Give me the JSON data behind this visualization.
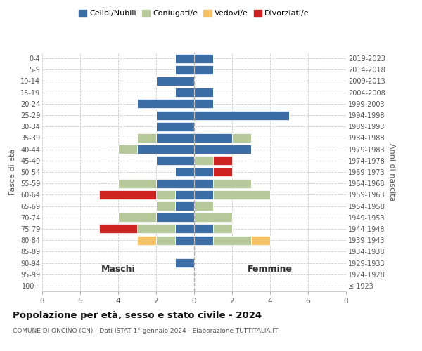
{
  "age_groups": [
    "100+",
    "95-99",
    "90-94",
    "85-89",
    "80-84",
    "75-79",
    "70-74",
    "65-69",
    "60-64",
    "55-59",
    "50-54",
    "45-49",
    "40-44",
    "35-39",
    "30-34",
    "25-29",
    "20-24",
    "15-19",
    "10-14",
    "5-9",
    "0-4"
  ],
  "birth_years": [
    "≤ 1923",
    "1924-1928",
    "1929-1933",
    "1934-1938",
    "1939-1943",
    "1944-1948",
    "1949-1953",
    "1954-1958",
    "1959-1963",
    "1964-1968",
    "1969-1973",
    "1974-1978",
    "1979-1983",
    "1984-1988",
    "1989-1993",
    "1994-1998",
    "1999-2003",
    "2004-2008",
    "2009-2013",
    "2014-2018",
    "2019-2023"
  ],
  "colors": {
    "celibi": "#3c6ea5",
    "coniugati": "#b5c99a",
    "vedovi": "#f5c165",
    "divorziati": "#cc2222"
  },
  "males": {
    "celibi": [
      0,
      0,
      1,
      0,
      1,
      1,
      2,
      1,
      1,
      2,
      1,
      2,
      3,
      2,
      2,
      2,
      3,
      1,
      2,
      1,
      1
    ],
    "coniugati": [
      0,
      0,
      0,
      0,
      1,
      2,
      2,
      1,
      1,
      2,
      0,
      0,
      1,
      1,
      0,
      0,
      0,
      0,
      0,
      0,
      0
    ],
    "vedovi": [
      0,
      0,
      0,
      0,
      1,
      0,
      0,
      0,
      0,
      0,
      0,
      0,
      0,
      0,
      0,
      0,
      0,
      0,
      0,
      0,
      0
    ],
    "divorziati": [
      0,
      0,
      0,
      0,
      0,
      2,
      0,
      0,
      3,
      0,
      0,
      0,
      0,
      0,
      0,
      0,
      0,
      0,
      0,
      0,
      0
    ]
  },
  "females": {
    "celibi": [
      0,
      0,
      0,
      0,
      1,
      1,
      0,
      0,
      1,
      1,
      1,
      0,
      3,
      2,
      0,
      5,
      1,
      1,
      0,
      1,
      1
    ],
    "coniugati": [
      0,
      0,
      0,
      0,
      2,
      1,
      2,
      1,
      3,
      2,
      0,
      1,
      0,
      1,
      0,
      0,
      0,
      0,
      0,
      0,
      0
    ],
    "vedovi": [
      0,
      0,
      0,
      0,
      1,
      0,
      0,
      0,
      0,
      0,
      0,
      0,
      0,
      0,
      0,
      0,
      0,
      0,
      0,
      0,
      0
    ],
    "divorziati": [
      0,
      0,
      0,
      0,
      0,
      0,
      0,
      0,
      0,
      0,
      1,
      1,
      0,
      0,
      0,
      0,
      0,
      0,
      0,
      0,
      0
    ]
  },
  "title": "Popolazione per età, sesso e stato civile - 2024",
  "subtitle": "COMUNE DI ONCINO (CN) - Dati ISTAT 1° gennaio 2024 - Elaborazione TUTTITALIA.IT",
  "xlabel_left": "Maschi",
  "xlabel_right": "Femmine",
  "ylabel_left": "Fasce di età",
  "ylabel_right": "Anni di nascita",
  "legend_labels": [
    "Celibi/Nubili",
    "Coniugati/e",
    "Vedovi/e",
    "Divorziati/e"
  ],
  "xlim": 8,
  "background_color": "#ffffff",
  "grid_color": "#cccccc"
}
